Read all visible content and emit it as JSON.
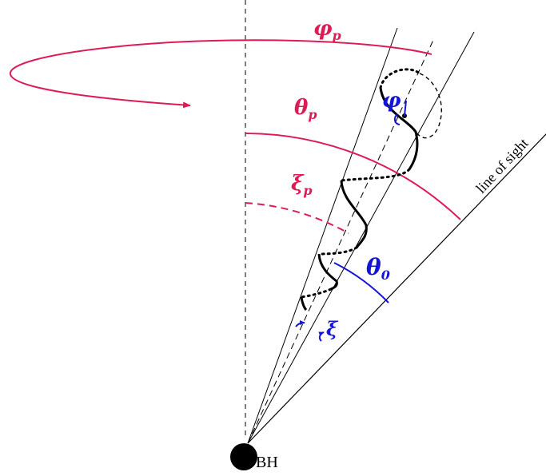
{
  "colors": {
    "magenta": "#dd1c55",
    "blue": "#1414d8",
    "black": "#000000"
  },
  "labels": {
    "phi_p": {
      "main": "φ",
      "sub": "p"
    },
    "theta_p": {
      "main": "θ",
      "sub": "p"
    },
    "xi_p": {
      "main": "ξ",
      "sub": "p"
    },
    "phi": "φ",
    "theta_0": {
      "main": "θ",
      "sub": "0"
    },
    "xi": "ξ",
    "line_of_sight": "line of sight",
    "bh": "BH"
  }
}
